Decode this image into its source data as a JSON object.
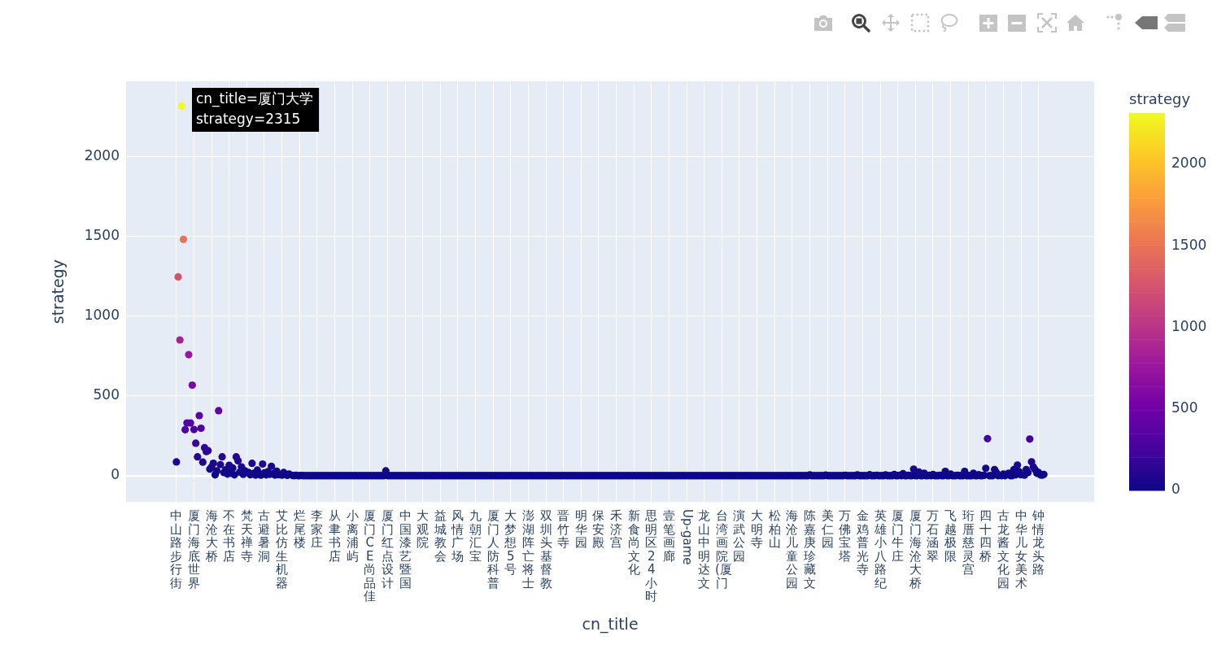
{
  "chart_data": {
    "type": "scatter",
    "xlabel": "cn_title",
    "ylabel": "strategy",
    "clabel": "strategy",
    "marker": "circle",
    "grid": true,
    "categories": [
      "中山路步行街",
      null,
      null,
      null,
      null,
      null,
      null,
      null,
      null,
      null,
      "厦门海底世界",
      null,
      null,
      null,
      null,
      null,
      null,
      null,
      null,
      null,
      "海沧大桥",
      null,
      null,
      null,
      null,
      null,
      null,
      null,
      null,
      null,
      "不在书店",
      null,
      null,
      null,
      null,
      null,
      null,
      null,
      null,
      null,
      "梵天禅寺",
      null,
      null,
      null,
      null,
      null,
      null,
      null,
      null,
      null,
      "古避暑洞",
      null,
      null,
      null,
      null,
      null,
      null,
      null,
      null,
      null,
      "艾比仿生机器",
      null,
      null,
      null,
      null,
      null,
      null,
      null,
      null,
      null,
      "烂尾楼",
      null,
      null,
      null,
      null,
      null,
      null,
      null,
      null,
      null,
      "李家庄",
      null,
      null,
      null,
      null,
      null,
      null,
      null,
      null,
      null,
      "从聿书店",
      null,
      null,
      null,
      null,
      null,
      null,
      null,
      null,
      null,
      "小离浦屿",
      null,
      null,
      null,
      null,
      null,
      null,
      null,
      null,
      null,
      "厦门CE尚品佳",
      null,
      null,
      null,
      null,
      null,
      null,
      null,
      null,
      null,
      "厦门红点设计",
      null,
      null,
      null,
      null,
      null,
      null,
      null,
      null,
      null,
      "中国漆艺暨国",
      null,
      null,
      null,
      null,
      null,
      null,
      null,
      null,
      null,
      "大观院",
      null,
      null,
      null,
      null,
      null,
      null,
      null,
      null,
      null,
      "益城教会",
      null,
      null,
      null,
      null,
      null,
      null,
      null,
      null,
      null,
      "风情广场",
      null,
      null,
      null,
      null,
      null,
      null,
      null,
      null,
      null,
      "九朝汇宝",
      null,
      null,
      null,
      null,
      null,
      null,
      null,
      null,
      null,
      "厦门人防科普",
      null,
      null,
      null,
      null,
      null,
      null,
      null,
      null,
      null,
      "大梦想5号",
      null,
      null,
      null,
      null,
      null,
      null,
      null,
      null,
      null,
      "澎湖阵亡将士",
      null,
      null,
      null,
      null,
      null,
      null,
      null,
      null,
      null,
      "双圳头基督教",
      null,
      null,
      null,
      null,
      null,
      null,
      null,
      null,
      null,
      "晋竹寺",
      null,
      null,
      null,
      null,
      null,
      null,
      null,
      null,
      null,
      "明华园",
      null,
      null,
      null,
      null,
      null,
      null,
      null,
      null,
      null,
      "保安殿",
      null,
      null,
      null,
      null,
      null,
      null,
      null,
      null,
      null,
      "禾济宫",
      null,
      null,
      null,
      null,
      null,
      null,
      null,
      null,
      null,
      "新食尚文化",
      null,
      null,
      null,
      null,
      null,
      null,
      null,
      null,
      null,
      "思明区24小时",
      null,
      null,
      null,
      null,
      null,
      null,
      null,
      null,
      null,
      "壹笔画廊",
      null,
      null,
      null,
      null,
      null,
      null,
      null,
      null,
      null,
      "Up-game",
      null,
      null,
      null,
      null,
      null,
      null,
      null,
      null,
      null,
      "龙山中明达文",
      null,
      null,
      null,
      null,
      null,
      null,
      null,
      null,
      null,
      "台湾画院(厦门",
      null,
      null,
      null,
      null,
      null,
      null,
      null,
      null,
      null,
      "演武公园",
      null,
      null,
      null,
      null,
      null,
      null,
      null,
      null,
      null,
      "大明寺",
      null,
      null,
      null,
      null,
      null,
      null,
      null,
      null,
      null,
      "松柏山",
      null,
      null,
      null,
      null,
      null,
      null,
      null,
      null,
      null,
      "海沧儿童公园",
      null,
      null,
      null,
      null,
      null,
      null,
      null,
      null,
      null,
      "陈嘉庚珍藏文",
      null,
      null,
      null,
      null,
      null,
      null,
      null,
      null,
      null,
      "美仁园",
      null,
      null,
      null,
      null,
      null,
      null,
      null,
      null,
      null,
      "万佛宝塔",
      null,
      null,
      null,
      null,
      null,
      null,
      null,
      null,
      null,
      "金鸡普光寺",
      null,
      null,
      null,
      null,
      null,
      null,
      null,
      null,
      null,
      "英雄小八路纪",
      null,
      null,
      null,
      null,
      null,
      null,
      null,
      null,
      null,
      "厦门牛庄",
      null,
      null,
      null,
      null,
      null,
      null,
      null,
      null,
      null,
      "厦门海沧大桥",
      null,
      null,
      null,
      null,
      null,
      null,
      null,
      null,
      null,
      "万石涵翠",
      null,
      null,
      null,
      null,
      null,
      null,
      null,
      null,
      null,
      "飞越极限",
      null,
      null,
      null,
      null,
      null,
      null,
      null,
      null,
      null,
      "珩厝慈灵宫",
      null,
      null,
      null,
      null,
      null,
      null,
      null,
      null,
      null,
      "四十四桥",
      null,
      null,
      null,
      null,
      null,
      null,
      null,
      null,
      null,
      "古龙酱文化园",
      null,
      null,
      null,
      null,
      null,
      null,
      null,
      null,
      null,
      "中华儿女美术",
      null,
      null,
      null,
      null,
      null,
      null,
      null,
      null,
      null,
      "钟情龙头路",
      null,
      null,
      null
    ],
    "values": [
      86,
      1245,
      850,
      2315,
      1480,
      288,
      330,
      758,
      330,
      567,
      289,
      203,
      118,
      376,
      297,
      85,
      175,
      151,
      157,
      41,
      55,
      78,
      5,
      30,
      407,
      69,
      118,
      20,
      37,
      10,
      65,
      15,
      48,
      5,
      118,
      93,
      22,
      55,
      8,
      30,
      null,
      20,
      6,
      77,
      15,
      4,
      35,
      10,
      3,
      73,
      18,
      5,
      25,
      8,
      59,
      12,
      4,
      28,
      6,
      null,
      3,
      20,
      null,
      2,
      10,
      null,
      1,
      0,
      2,
      0,
      0,
      1,
      0,
      0,
      0,
      0,
      0,
      0,
      0,
      0,
      0,
      0,
      0,
      0,
      0,
      0,
      0,
      0,
      0,
      0,
      0,
      0,
      0,
      0,
      0,
      0,
      0,
      0,
      0,
      0,
      0,
      0,
      0,
      0,
      0,
      0,
      0,
      0,
      0,
      0,
      0,
      0,
      0,
      0,
      0,
      0,
      0,
      0,
      0,
      30,
      0,
      0,
      0,
      0,
      0,
      0,
      0,
      0,
      0,
      0,
      0,
      0,
      0,
      0,
      0,
      0,
      0,
      0,
      0,
      0,
      0,
      0,
      0,
      0,
      0,
      0,
      0,
      0,
      0,
      0,
      0,
      0,
      0,
      0,
      0,
      0,
      0,
      0,
      0,
      0,
      0,
      0,
      0,
      0,
      0,
      0,
      0,
      0,
      0,
      0,
      0,
      0,
      0,
      0,
      0,
      0,
      0,
      0,
      0,
      0,
      0,
      0,
      0,
      0,
      0,
      0,
      0,
      0,
      0,
      0,
      0,
      0,
      0,
      0,
      0,
      0,
      0,
      0,
      0,
      0,
      0,
      0,
      0,
      0,
      0,
      0,
      0,
      0,
      0,
      0,
      0,
      0,
      0,
      0,
      0,
      0,
      0,
      0,
      0,
      0,
      0,
      0,
      0,
      0,
      0,
      0,
      0,
      0,
      0,
      0,
      0,
      0,
      0,
      0,
      0,
      0,
      0,
      0,
      0,
      0,
      0,
      0,
      0,
      0,
      0,
      0,
      0,
      0,
      0,
      0,
      0,
      0,
      0,
      0,
      0,
      0,
      0,
      0,
      0,
      0,
      0,
      0,
      0,
      0,
      0,
      0,
      0,
      0,
      0,
      0,
      0,
      0,
      0,
      0,
      0,
      0,
      0,
      0,
      0,
      0,
      0,
      0,
      0,
      0,
      0,
      0,
      0,
      0,
      0,
      0,
      0,
      0,
      0,
      0,
      0,
      0,
      0,
      0,
      0,
      0,
      0,
      0,
      0,
      0,
      0,
      0,
      0,
      0,
      0,
      0,
      0,
      0,
      0,
      0,
      0,
      0,
      0,
      0,
      0,
      0,
      0,
      0,
      0,
      0,
      0,
      0,
      0,
      0,
      0,
      0,
      0,
      0,
      0,
      0,
      0,
      0,
      0,
      0,
      0,
      0,
      0,
      0,
      0,
      0,
      0,
      0,
      0,
      0,
      0,
      0,
      0,
      0,
      0,
      0,
      0,
      0,
      0,
      0,
      0,
      0,
      5,
      0,
      0,
      0,
      0,
      0,
      0,
      0,
      0,
      4,
      0,
      0,
      0,
      0,
      0,
      0,
      0,
      0,
      0,
      0,
      3,
      0,
      0,
      0,
      0,
      0,
      0,
      5,
      0,
      0,
      0,
      0,
      0,
      0,
      6,
      0,
      0,
      0,
      2,
      0,
      0,
      0,
      0,
      5,
      0,
      0,
      0,
      0,
      8,
      0,
      0,
      2,
      0,
      12,
      0,
      0,
      3,
      0,
      0,
      41,
      0,
      0,
      23,
      0,
      0,
      15,
      0,
      0,
      2,
      0,
      8,
      0,
      0,
      0,
      2,
      0,
      0,
      27,
      0,
      0,
      10,
      0,
      0,
      0,
      3,
      0,
      0,
      0,
      27,
      0,
      0,
      0,
      0,
      15,
      0,
      0,
      6,
      0,
      0,
      2,
      46,
      232,
      0,
      0,
      0,
      38,
      20,
      0,
      null,
      0,
      10,
      0,
      null,
      15,
      0,
      0,
      38,
      5,
      66,
      25,
      6,
      null,
      3,
      38,
      20,
      229,
      87,
      55,
      38,
      15,
      20,
      5,
      3,
      8
    ],
    "cvalues": [
      86,
      1245,
      850,
      2315,
      1480,
      288,
      330,
      758,
      330,
      567,
      289,
      203,
      118,
      376,
      297,
      85,
      175,
      151,
      157,
      41,
      55,
      78,
      5,
      30,
      407,
      69,
      118,
      20,
      37,
      10,
      65,
      15,
      48,
      5,
      118,
      93,
      22,
      55,
      8,
      30,
      null,
      20,
      6,
      77,
      15,
      4,
      35,
      10,
      3,
      73,
      18,
      5,
      25,
      8,
      59,
      12,
      4,
      28,
      6,
      null,
      3,
      20,
      null,
      2,
      10,
      null,
      1,
      0,
      2,
      0,
      0,
      1,
      0,
      0,
      0,
      0,
      0,
      0,
      0,
      0,
      0,
      0,
      0,
      0,
      0,
      0,
      0,
      0,
      0,
      0,
      0,
      0,
      0,
      0,
      0,
      0,
      0,
      0,
      0,
      0,
      0,
      0,
      0,
      0,
      0,
      0,
      0,
      0,
      0,
      0,
      0,
      0,
      0,
      0,
      0,
      0,
      0,
      0,
      0,
      30,
      0,
      0,
      0,
      0,
      0,
      0,
      0,
      0,
      0,
      0,
      0,
      0,
      0,
      0,
      0,
      0,
      0,
      0,
      0,
      0,
      0,
      0,
      0,
      0,
      0,
      0,
      0,
      0,
      0,
      0,
      0,
      0,
      0,
      0,
      0,
      0,
      0,
      0,
      0,
      0,
      0,
      0,
      0,
      0,
      0,
      0,
      0,
      0,
      0,
      0,
      0,
      0,
      0,
      0,
      0,
      0,
      0,
      0,
      0,
      0,
      0,
      0,
      0,
      0,
      0,
      0,
      0,
      0,
      0,
      0,
      0,
      0,
      0,
      0,
      0,
      0,
      0,
      0,
      0,
      0,
      0,
      0,
      0,
      0,
      0,
      0,
      0,
      0,
      0,
      0,
      0,
      0,
      0,
      0,
      0,
      0,
      0,
      0,
      0,
      0,
      0,
      0,
      0,
      0,
      0,
      0,
      0,
      0,
      0,
      0,
      0,
      0,
      0,
      0,
      0,
      0,
      0,
      0,
      0,
      0,
      0,
      0,
      0,
      0,
      0,
      0,
      0,
      0,
      0,
      0,
      0,
      0,
      0,
      0,
      0,
      0,
      0,
      0,
      0,
      0,
      0,
      0,
      0,
      0,
      0,
      0,
      0,
      0,
      0,
      0,
      0,
      0,
      0,
      0,
      0,
      0,
      0,
      0,
      0,
      0,
      0,
      0,
      0,
      0,
      0,
      0,
      0,
      0,
      0,
      0,
      0,
      0,
      0,
      0,
      0,
      0,
      0,
      0,
      0,
      0,
      0,
      0,
      0,
      0,
      0,
      0,
      0,
      0,
      0,
      0,
      0,
      0,
      0,
      0,
      0,
      0,
      0,
      0,
      0,
      0,
      0,
      0,
      0,
      0,
      0,
      0,
      0,
      0,
      0,
      0,
      0,
      0,
      0,
      0,
      0,
      0,
      0,
      0,
      0,
      0,
      0,
      0,
      0,
      0,
      0,
      0,
      0,
      0,
      0,
      0,
      0,
      0,
      0,
      0,
      0,
      0,
      0,
      0,
      0,
      0,
      5,
      0,
      0,
      0,
      0,
      0,
      0,
      0,
      0,
      4,
      0,
      0,
      0,
      0,
      0,
      0,
      0,
      0,
      0,
      0,
      3,
      0,
      0,
      0,
      0,
      0,
      0,
      5,
      0,
      0,
      0,
      0,
      0,
      0,
      6,
      0,
      0,
      0,
      2,
      0,
      0,
      0,
      0,
      5,
      0,
      0,
      0,
      0,
      8,
      0,
      0,
      2,
      0,
      12,
      0,
      0,
      3,
      0,
      0,
      41,
      0,
      0,
      23,
      0,
      0,
      15,
      0,
      0,
      2,
      0,
      8,
      0,
      0,
      0,
      2,
      0,
      0,
      27,
      0,
      0,
      10,
      0,
      0,
      0,
      3,
      0,
      0,
      0,
      27,
      0,
      0,
      0,
      0,
      15,
      0,
      0,
      6,
      0,
      0,
      2,
      46,
      232,
      0,
      0,
      0,
      38,
      20,
      0,
      null,
      0,
      10,
      0,
      null,
      15,
      0,
      0,
      38,
      5,
      66,
      25,
      6,
      null,
      3,
      38,
      20,
      229,
      87,
      55,
      38,
      15,
      20,
      5,
      3,
      8
    ],
    "clim": [
      0,
      2315
    ],
    "cticks": [
      0,
      500,
      1000,
      1500,
      2000
    ],
    "ylim": [
      -165,
      2470
    ],
    "yticks": [
      0,
      500,
      1000,
      1500,
      2000
    ],
    "annotations": [
      "cn_title=厦门大学\nstrategy=2315"
    ]
  }
}
